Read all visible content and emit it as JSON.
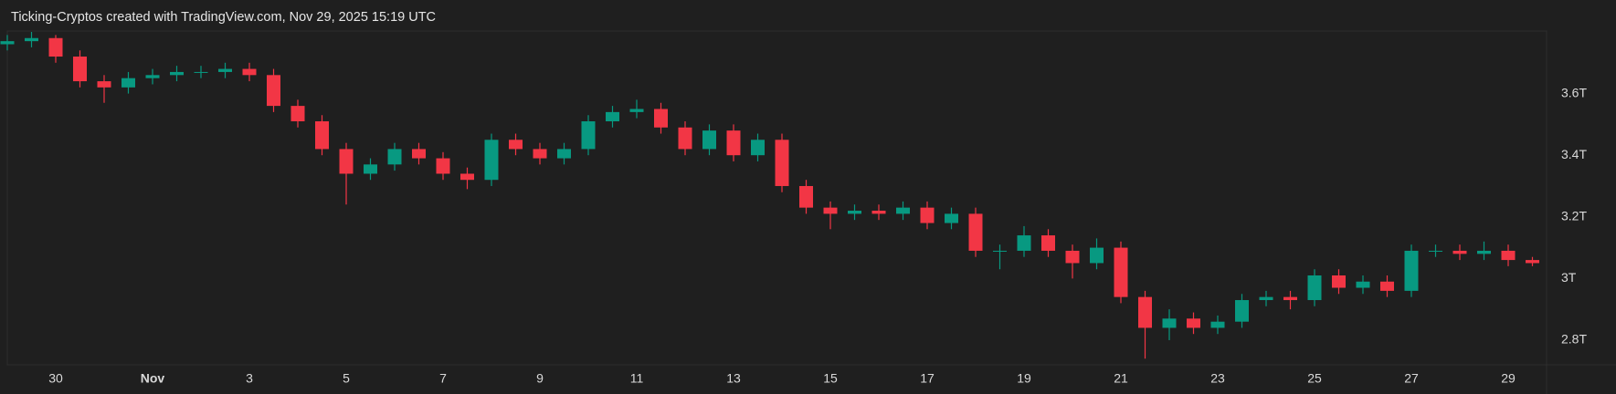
{
  "chart_data": {
    "type": "candlestick",
    "title": "Ticking-Cryptos created with TradingView.com, Nov 29, 2025 15:19 UTC",
    "categories": [
      null,
      null,
      "30",
      null,
      null,
      null,
      "Nov",
      null,
      null,
      null,
      "3",
      null,
      null,
      null,
      "5",
      null,
      null,
      null,
      "7",
      null,
      null,
      null,
      "9",
      null,
      null,
      null,
      "11",
      null,
      null,
      null,
      "13",
      null,
      null,
      null,
      "15",
      null,
      null,
      null,
      "17",
      null,
      null,
      null,
      "19",
      null,
      null,
      null,
      "21",
      null,
      null,
      null,
      "23",
      null,
      null,
      null,
      "25",
      null,
      null,
      null,
      "27",
      null,
      null,
      null,
      "29",
      null
    ],
    "open": [
      3.76,
      3.77,
      3.78,
      3.72,
      3.64,
      3.62,
      3.65,
      3.66,
      3.67,
      3.67,
      3.68,
      3.66,
      3.56,
      3.51,
      3.42,
      3.34,
      3.37,
      3.42,
      3.39,
      3.34,
      3.32,
      3.45,
      3.42,
      3.39,
      3.42,
      3.51,
      3.54,
      3.55,
      3.49,
      3.42,
      3.48,
      3.4,
      3.45,
      3.3,
      3.23,
      3.21,
      3.22,
      3.21,
      3.23,
      3.18,
      3.21,
      3.09,
      3.09,
      3.14,
      3.09,
      3.05,
      3.1,
      2.94,
      2.84,
      2.87,
      2.84,
      2.86,
      2.93,
      2.94,
      2.93,
      3.01,
      2.97,
      2.99,
      2.96,
      3.09,
      3.09,
      3.08,
      3.09,
      3.06
    ],
    "high": [
      3.79,
      3.8,
      3.79,
      3.74,
      3.66,
      3.67,
      3.68,
      3.69,
      3.69,
      3.7,
      3.7,
      3.68,
      3.58,
      3.53,
      3.44,
      3.39,
      3.44,
      3.44,
      3.41,
      3.36,
      3.47,
      3.47,
      3.44,
      3.44,
      3.53,
      3.56,
      3.58,
      3.57,
      3.51,
      3.5,
      3.5,
      3.47,
      3.47,
      3.32,
      3.25,
      3.24,
      3.24,
      3.25,
      3.25,
      3.23,
      3.23,
      3.11,
      3.17,
      3.16,
      3.11,
      3.13,
      3.12,
      2.96,
      2.9,
      2.89,
      2.88,
      2.95,
      2.96,
      2.96,
      3.03,
      3.03,
      3.01,
      3.01,
      3.11,
      3.11,
      3.11,
      3.12,
      3.11,
      3.07
    ],
    "low": [
      3.74,
      3.75,
      3.7,
      3.62,
      3.57,
      3.6,
      3.63,
      3.64,
      3.65,
      3.65,
      3.64,
      3.54,
      3.49,
      3.4,
      3.24,
      3.32,
      3.35,
      3.37,
      3.32,
      3.29,
      3.3,
      3.4,
      3.37,
      3.37,
      3.4,
      3.49,
      3.52,
      3.47,
      3.4,
      3.4,
      3.38,
      3.38,
      3.28,
      3.21,
      3.16,
      3.19,
      3.19,
      3.19,
      3.16,
      3.16,
      3.07,
      3.03,
      3.07,
      3.07,
      3.0,
      3.03,
      2.92,
      2.74,
      2.8,
      2.82,
      2.82,
      2.84,
      2.91,
      2.9,
      2.91,
      2.95,
      2.95,
      2.94,
      2.94,
      3.07,
      3.06,
      3.06,
      3.04,
      3.04
    ],
    "close": [
      3.77,
      3.78,
      3.72,
      3.64,
      3.62,
      3.65,
      3.66,
      3.67,
      3.67,
      3.68,
      3.66,
      3.56,
      3.51,
      3.42,
      3.34,
      3.37,
      3.42,
      3.39,
      3.34,
      3.32,
      3.45,
      3.42,
      3.39,
      3.42,
      3.51,
      3.54,
      3.55,
      3.49,
      3.42,
      3.48,
      3.4,
      3.45,
      3.3,
      3.23,
      3.21,
      3.22,
      3.21,
      3.23,
      3.18,
      3.21,
      3.09,
      3.09,
      3.14,
      3.09,
      3.05,
      3.1,
      2.94,
      2.84,
      2.87,
      2.84,
      2.86,
      2.93,
      2.94,
      2.93,
      3.01,
      2.97,
      2.99,
      2.96,
      3.09,
      3.09,
      3.08,
      3.09,
      3.06,
      3.05
    ],
    "up_color": "#089981",
    "down_color": "#f23645",
    "ylim": [
      2.72,
      3.8
    ],
    "yticks": [
      {
        "value": 2.8,
        "label": "2.8T"
      },
      {
        "value": 3,
        "label": "3T"
      },
      {
        "value": 3.2,
        "label": "3.2T"
      },
      {
        "value": 3.4,
        "label": "3.4T"
      },
      {
        "value": 3.6,
        "label": "3.6T"
      }
    ],
    "grid": false
  }
}
